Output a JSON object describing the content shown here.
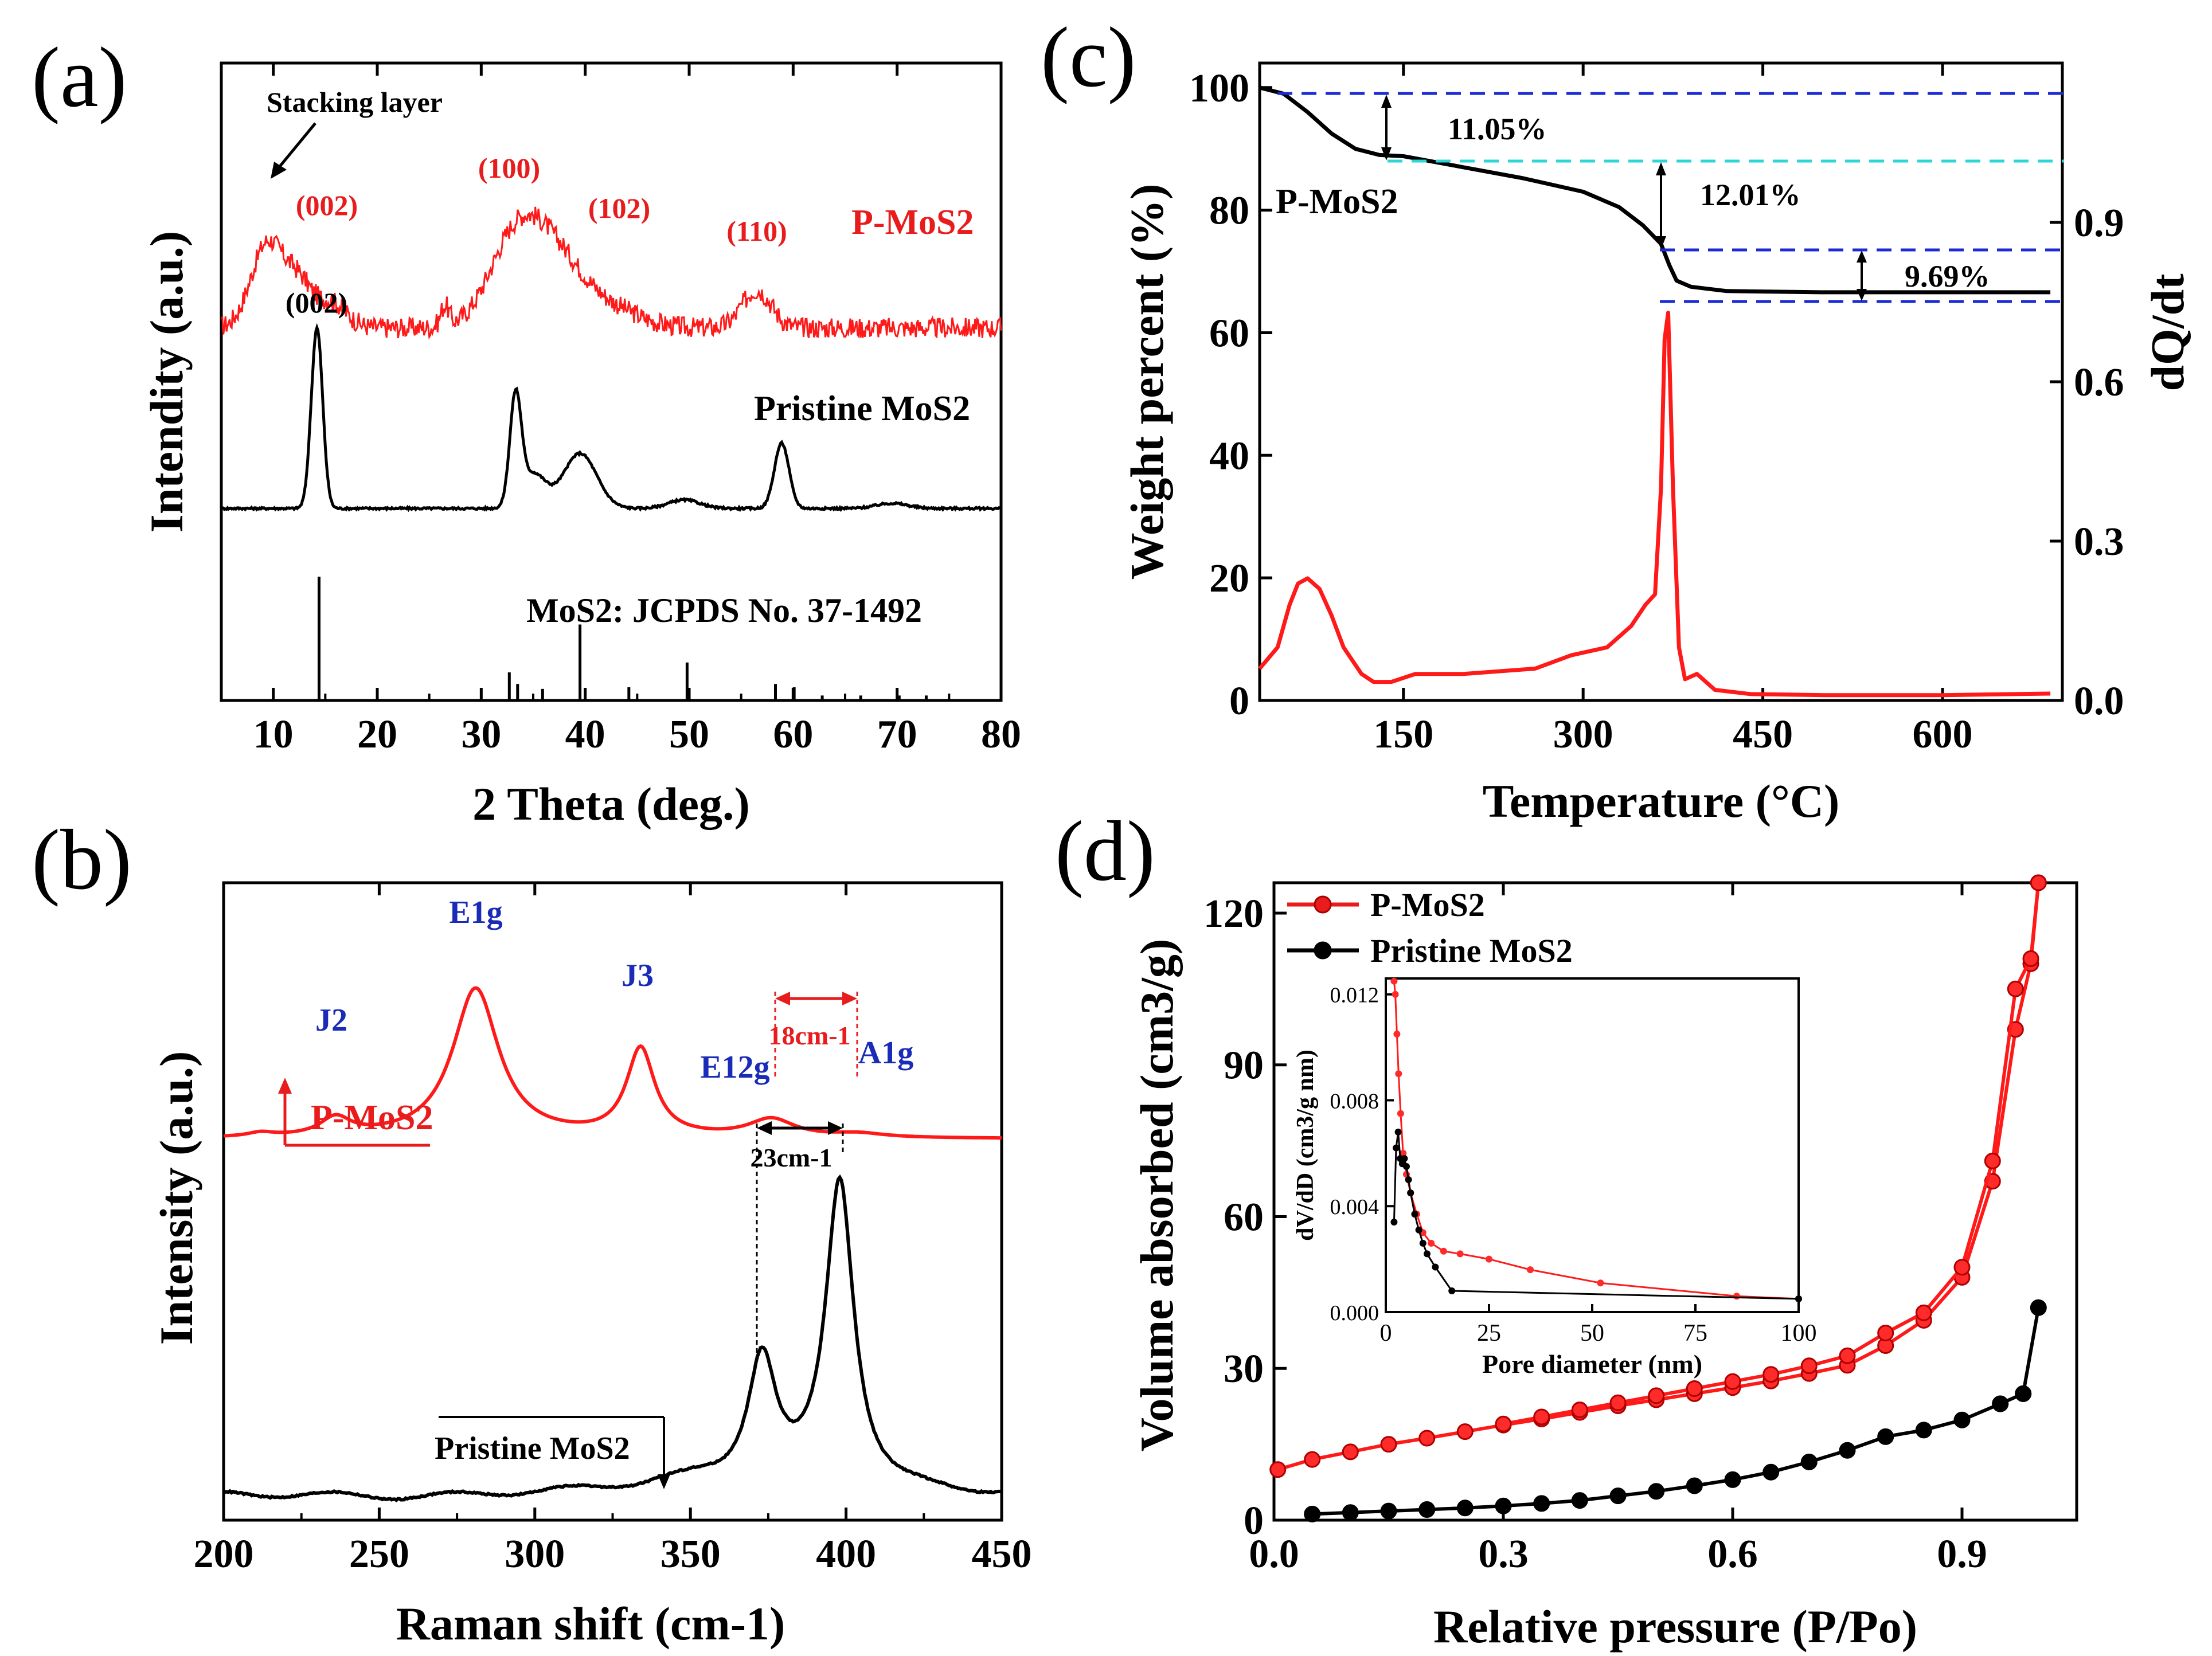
{
  "chart_data": [
    {
      "id": "a",
      "type": "line",
      "panel_label": "(a)",
      "xlabel": "2 Theta (deg.)",
      "ylabel": "Intendity (a.u.)",
      "xlim": [
        5,
        80
      ],
      "xticks": [
        10,
        20,
        30,
        40,
        50,
        60,
        70,
        80
      ],
      "annotations": {
        "stacking": "Stacking layer",
        "red_peaks": [
          "(002)",
          "(100)",
          "(102)",
          "(110)"
        ],
        "black_peak": "(002)",
        "ref_label": "MoS2:   JCPDS No. 37-1492"
      },
      "legend": [
        "P-MoS2",
        "Pristine MoS2"
      ],
      "series": [
        {
          "name": "P-MoS2",
          "color": "#ff1a1a",
          "offset": 2.1,
          "peaks": [
            [
              9.5,
              0.5,
              1.6
            ],
            [
              12.5,
              0.22,
              1.2
            ],
            [
              15.5,
              0.15,
              1.5
            ],
            [
              33.5,
              0.55,
              2.6
            ],
            [
              37.5,
              0.3,
              2.5
            ],
            [
              42,
              0.12,
              3
            ],
            [
              56.5,
              0.22,
              1.4
            ],
            [
              26.5,
              0.12,
              0.4
            ]
          ],
          "noise": 0.06
        },
        {
          "name": "Pristine MoS2",
          "color": "#000000",
          "offset": 1.05,
          "peaks": [
            [
              14.2,
              1.05,
              0.55
            ],
            [
              33.3,
              0.62,
              0.55
            ],
            [
              35,
              0.2,
              1.2
            ],
            [
              39.5,
              0.32,
              1.6
            ],
            [
              49.5,
              0.05,
              1.5
            ],
            [
              58.9,
              0.38,
              0.7
            ],
            [
              69.5,
              0.03,
              1.5
            ]
          ],
          "noise": 0.006
        }
      ],
      "reference_sticks": [
        [
          14.4,
          0.75
        ],
        [
          32.7,
          0.17
        ],
        [
          33.5,
          0.1
        ],
        [
          35.9,
          0.07
        ],
        [
          39.5,
          0.46
        ],
        [
          44.2,
          0.08
        ],
        [
          49.8,
          0.23
        ],
        [
          58.3,
          0.1
        ],
        [
          60.1,
          0.08
        ],
        [
          62.8,
          0.03
        ],
        [
          66.5,
          0.03
        ],
        [
          70.2,
          0.03
        ],
        [
          72.8,
          0.03
        ]
      ]
    },
    {
      "id": "b",
      "type": "line",
      "panel_label": "(b)",
      "xlabel": "Raman shift (cm-1)",
      "ylabel": "Intensity (a.u.)",
      "xlim": [
        200,
        450
      ],
      "xticks": [
        200,
        250,
        300,
        350,
        400,
        450
      ],
      "legend": [
        "P-MoS2",
        "Pristine MoS2"
      ],
      "annotations": {
        "j2": "J2",
        "e1g": "E1g",
        "j3": "J3",
        "e12g": "E12g",
        "a1g": "A1g",
        "shift_red": "18cm-1",
        "shift_black": "23cm-1"
      },
      "series": [
        {
          "name": "P-MoS2",
          "color": "#ff1a1a",
          "offset": 1.38,
          "peaks": [
            [
              212,
              0.015,
              5
            ],
            [
              236,
              0.07,
              6
            ],
            [
              281,
              0.58,
              9
            ],
            [
              334,
              0.34,
              5.5
            ],
            [
              376,
              0.07,
              9
            ],
            [
              404,
              0.015,
              10
            ]
          ]
        },
        {
          "name": "Pristine MoS2",
          "color": "#000000",
          "offset": 0.0,
          "peaks": [
            [
              373,
              0.5,
              5.5
            ],
            [
              398,
              1.2,
              5.5
            ],
            [
              350,
              0.05,
              25
            ]
          ]
        }
      ]
    },
    {
      "id": "c",
      "type": "line",
      "panel_label": "(c)",
      "xlabel": "Temperature (°C)",
      "ylabel": "Weight percent (%)",
      "y2label": "dQ/dt",
      "xlim": [
        30,
        700
      ],
      "ylim": [
        0,
        104
      ],
      "y2lim": [
        0,
        1.2
      ],
      "xticks": [
        150,
        300,
        450,
        600
      ],
      "yticks": [
        0,
        20,
        40,
        60,
        80,
        100
      ],
      "y2ticks": [
        0.0,
        0.3,
        0.6,
        0.9
      ],
      "sample_label": "P-MoS2",
      "steps": [
        "11.05%",
        "12.01%",
        "9.69%"
      ],
      "tga": {
        "x": [
          30,
          50,
          70,
          90,
          110,
          130,
          150,
          200,
          250,
          300,
          330,
          350,
          365,
          372,
          378,
          390,
          420,
          500,
          600,
          690
        ],
        "y": [
          100,
          99,
          96,
          92.5,
          90,
          89,
          88.8,
          87,
          85.2,
          83,
          80.5,
          77.5,
          74.5,
          71,
          68.5,
          67.5,
          66.8,
          66.6,
          66.6,
          66.6
        ]
      },
      "dtg": {
        "x": [
          30,
          45,
          55,
          62,
          70,
          80,
          90,
          100,
          115,
          125,
          140,
          160,
          200,
          260,
          290,
          320,
          340,
          352,
          360,
          365,
          368,
          371,
          375,
          380,
          385,
          395,
          410,
          440,
          500,
          600,
          690
        ],
        "y": [
          0.06,
          0.1,
          0.18,
          0.22,
          0.23,
          0.21,
          0.16,
          0.1,
          0.05,
          0.035,
          0.035,
          0.05,
          0.05,
          0.06,
          0.085,
          0.1,
          0.14,
          0.18,
          0.2,
          0.4,
          0.68,
          0.73,
          0.4,
          0.1,
          0.04,
          0.05,
          0.02,
          0.012,
          0.01,
          0.01,
          0.013
        ]
      }
    },
    {
      "id": "d",
      "type": "line",
      "panel_label": "(d)",
      "xlabel": "Relative pressure (P/Po)",
      "ylabel": "Volume absorbed (cm3/g)",
      "xlim": [
        0,
        1.05
      ],
      "ylim": [
        0,
        126
      ],
      "xticks": [
        0.0,
        0.3,
        0.6,
        0.9
      ],
      "yticks": [
        0,
        30,
        60,
        90,
        120
      ],
      "legend": [
        "P-MoS2",
        "Pristine MoS2"
      ],
      "series": [
        {
          "name": "P-MoS2 adsorption",
          "color": "#ff1a1a",
          "x": [
            0.005,
            0.05,
            0.1,
            0.15,
            0.2,
            0.25,
            0.3,
            0.35,
            0.4,
            0.45,
            0.5,
            0.55,
            0.6,
            0.65,
            0.7,
            0.75,
            0.8,
            0.85,
            0.9,
            0.94,
            0.97,
            0.99,
            1.0
          ],
          "y": [
            10,
            12,
            13.5,
            15,
            16.2,
            17.5,
            18.8,
            20,
            21.3,
            22.6,
            23.8,
            25,
            26.2,
            27.5,
            29,
            30.6,
            34.5,
            39.5,
            48,
            67,
            97,
            110,
            126
          ]
        },
        {
          "name": "P-MoS2 desorption",
          "color": "#ff1a1a",
          "x": [
            1.0,
            0.99,
            0.97,
            0.94,
            0.9,
            0.85,
            0.8,
            0.75,
            0.7,
            0.65,
            0.6,
            0.55,
            0.5,
            0.45,
            0.4,
            0.35,
            0.3
          ],
          "y": [
            126,
            111,
            105,
            71,
            50,
            41,
            37,
            32.5,
            30.5,
            28.8,
            27.4,
            26,
            24.6,
            23.2,
            21.8,
            20.4,
            19
          ]
        },
        {
          "name": "Pristine MoS2",
          "color": "#000000",
          "x": [
            0.05,
            0.1,
            0.15,
            0.2,
            0.25,
            0.3,
            0.35,
            0.4,
            0.45,
            0.5,
            0.55,
            0.6,
            0.65,
            0.7,
            0.75,
            0.8,
            0.85,
            0.9,
            0.95,
            0.98,
            1.0,
            0.98,
            0.95
          ],
          "y": [
            1.2,
            1.5,
            1.8,
            2.1,
            2.4,
            2.8,
            3.3,
            3.9,
            4.8,
            5.7,
            6.8,
            8,
            9.5,
            11.5,
            13.8,
            16.5,
            17.8,
            19.8,
            23,
            25,
            42,
            25,
            23
          ]
        }
      ],
      "inset": {
        "xlabel": "Pore diameter (nm)",
        "ylabel": "dV/dD (cm3/g nm)",
        "xlim": [
          0,
          100
        ],
        "ylim": [
          0,
          0.0126
        ],
        "xticks": [
          0,
          25,
          50,
          75,
          100
        ],
        "yticks": [
          0.0,
          0.004,
          0.008,
          0.012
        ],
        "ytick_labels": [
          "0.000",
          "0.004",
          "0.008",
          "0.012"
        ],
        "series": [
          {
            "name": "P-MoS2",
            "color": "#ff1a1a",
            "x": [
              2,
              2.3,
              2.7,
              3.1,
              3.6,
              4.2,
              5,
              6,
              7.5,
              9,
              11,
              14,
              18,
              25,
              35,
              52,
              85,
              100
            ],
            "y": [
              0.0125,
              0.012,
              0.0105,
              0.009,
              0.0075,
              0.006,
              0.0052,
              0.0045,
              0.0037,
              0.003,
              0.0026,
              0.0023,
              0.0022,
              0.002,
              0.0016,
              0.0011,
              0.0006,
              0.0005
            ]
          },
          {
            "name": "Pristine MoS2",
            "color": "#000000",
            "x": [
              2,
              2.5,
              3,
              3.5,
              4,
              4.5,
              5,
              5.5,
              6,
              7,
              8,
              9,
              10,
              12,
              16,
              100
            ],
            "y": [
              0.0034,
              0.0062,
              0.0068,
              0.0058,
              0.0056,
              0.0058,
              0.0055,
              0.005,
              0.0045,
              0.0037,
              0.0031,
              0.0026,
              0.0022,
              0.0017,
              0.0008,
              0.0005
            ]
          }
        ]
      }
    }
  ]
}
